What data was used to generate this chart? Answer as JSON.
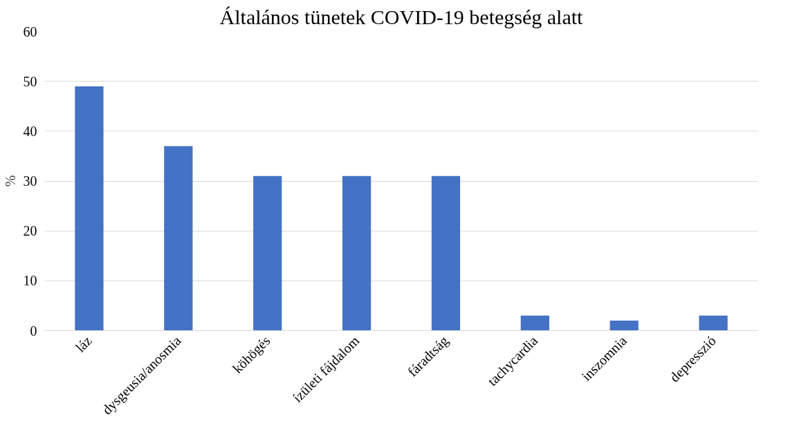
{
  "chart_data": {
    "type": "bar",
    "title": "Általános tünetek COVID-19 betegség alatt",
    "ylabel": "%",
    "categories": [
      "láz",
      "dysgeusia/anosmia",
      "köhögés",
      "ízületi fájdalom",
      "fáradtság",
      "tachycardia",
      "inszomnia",
      "depresszió"
    ],
    "values": [
      49,
      37,
      31,
      31,
      31,
      3,
      2,
      3
    ],
    "color": "#4472c4",
    "ylim": [
      0,
      60
    ],
    "yticks": [
      0,
      10,
      20,
      30,
      40,
      50,
      60
    ],
    "grid": "y"
  }
}
